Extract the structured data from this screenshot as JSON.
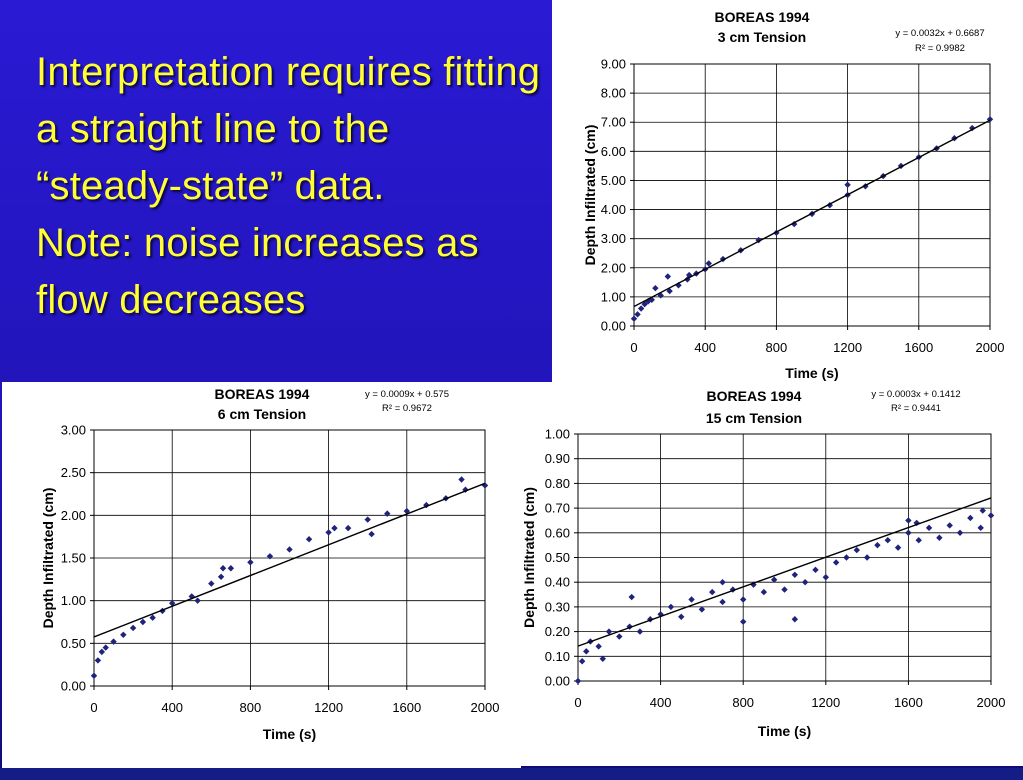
{
  "slide": {
    "lines": [
      "Interpretation requires fitting a straight line to the “steady-state” data.",
      "Note: noise increases as flow decreases"
    ],
    "text_color": "#ffff33",
    "background": "#2a1ad4"
  },
  "chart_data": [
    {
      "type": "scatter",
      "title": "BOREAS  1994",
      "subtitle": "3 cm Tension",
      "xlabel": "Time (s)",
      "ylabel": "Depth Infiltrated (cm)",
      "xlim": [
        0,
        2000
      ],
      "ylim": [
        0,
        9
      ],
      "x_ticks": [
        "0",
        "400",
        "800",
        "1200",
        "1600",
        "2000"
      ],
      "y_ticks": [
        "0.00",
        "1.00",
        "2.00",
        "3.00",
        "4.00",
        "5.00",
        "6.00",
        "7.00",
        "8.00",
        "9.00"
      ],
      "equation": "y = 0.0032x + 0.6687",
      "r2": "R² = 0.9982",
      "trendline": {
        "slope": 0.0032,
        "intercept": 0.6687
      },
      "grid": true,
      "series": [
        {
          "color": "#1f237a",
          "points": [
            [
              0,
              0.25
            ],
            [
              20,
              0.4
            ],
            [
              40,
              0.6
            ],
            [
              60,
              0.75
            ],
            [
              80,
              0.85
            ],
            [
              100,
              0.9
            ],
            [
              150,
              1.05
            ],
            [
              200,
              1.2
            ],
            [
              250,
              1.4
            ],
            [
              300,
              1.6
            ],
            [
              350,
              1.8
            ],
            [
              400,
              1.95
            ],
            [
              500,
              2.3
            ],
            [
              600,
              2.6
            ],
            [
              700,
              2.95
            ],
            [
              800,
              3.2
            ],
            [
              900,
              3.5
            ],
            [
              1000,
              3.85
            ],
            [
              1100,
              4.15
            ],
            [
              1200,
              4.5
            ],
            [
              1300,
              4.8
            ],
            [
              1400,
              5.15
            ],
            [
              1500,
              5.5
            ],
            [
              1600,
              5.8
            ],
            [
              1700,
              6.1
            ],
            [
              1800,
              6.45
            ],
            [
              1900,
              6.8
            ],
            [
              2000,
              7.1
            ]
          ]
        },
        {
          "color": "#1f237a",
          "points": [
            [
              120,
              1.3
            ],
            [
              190,
              1.7
            ],
            [
              310,
              1.75
            ],
            [
              420,
              2.15
            ],
            [
              1200,
              4.85
            ]
          ]
        }
      ]
    },
    {
      "type": "scatter",
      "title": "BOREAS  1994",
      "subtitle": "6 cm Tension",
      "xlabel": "Time (s)",
      "ylabel": "Depth Infiltrated (cm)",
      "xlim": [
        0,
        2000
      ],
      "ylim": [
        0,
        3
      ],
      "x_ticks": [
        "0",
        "400",
        "800",
        "1200",
        "1600",
        "2000"
      ],
      "y_ticks": [
        "0.00",
        "0.50",
        "1.00",
        "1.50",
        "2.00",
        "2.50",
        "3.00"
      ],
      "equation": "y = 0.0009x + 0.575",
      "r2": "R² = 0.9672",
      "trendline": {
        "slope": 0.0009,
        "intercept": 0.575
      },
      "grid": true,
      "series": [
        {
          "color": "#1f237a",
          "points": [
            [
              0,
              0.12
            ],
            [
              20,
              0.3
            ],
            [
              40,
              0.4
            ],
            [
              60,
              0.45
            ],
            [
              100,
              0.52
            ],
            [
              150,
              0.6
            ],
            [
              200,
              0.68
            ],
            [
              250,
              0.75
            ],
            [
              300,
              0.8
            ],
            [
              350,
              0.88
            ],
            [
              400,
              0.97
            ],
            [
              500,
              1.05
            ],
            [
              600,
              1.2
            ],
            [
              650,
              1.28
            ],
            [
              700,
              1.38
            ],
            [
              800,
              1.45
            ],
            [
              900,
              1.52
            ],
            [
              1000,
              1.6
            ],
            [
              1100,
              1.72
            ],
            [
              1200,
              1.8
            ],
            [
              1300,
              1.85
            ],
            [
              1400,
              1.95
            ],
            [
              1500,
              2.02
            ],
            [
              1600,
              2.05
            ],
            [
              1700,
              2.12
            ],
            [
              1800,
              2.2
            ],
            [
              1900,
              2.3
            ],
            [
              2000,
              2.35
            ]
          ]
        },
        {
          "color": "#1f237a",
          "points": [
            [
              530,
              1.0
            ],
            [
              660,
              1.38
            ],
            [
              1230,
              1.85
            ],
            [
              1420,
              1.78
            ],
            [
              1880,
              2.42
            ]
          ]
        }
      ]
    },
    {
      "type": "scatter",
      "title": "BOREAS  1994",
      "subtitle": "15 cm Tension",
      "xlabel": "Time (s)",
      "ylabel": "Depth Infiltrated (cm)",
      "xlim": [
        0,
        2000
      ],
      "ylim": [
        0,
        1
      ],
      "x_ticks": [
        "0",
        "400",
        "800",
        "1200",
        "1600",
        "2000"
      ],
      "y_ticks": [
        "0.00",
        "0.10",
        "0.20",
        "0.30",
        "0.40",
        "0.50",
        "0.60",
        "0.70",
        "0.80",
        "0.90",
        "1.00"
      ],
      "equation": "y = 0.0003x + 0.1412",
      "r2": "R² = 0.9441",
      "trendline": {
        "slope": 0.0003,
        "intercept": 0.1412
      },
      "grid": true,
      "series": [
        {
          "color": "#1f237a",
          "points": [
            [
              0,
              0.0
            ],
            [
              20,
              0.08
            ],
            [
              40,
              0.12
            ],
            [
              60,
              0.16
            ],
            [
              100,
              0.14
            ],
            [
              120,
              0.09
            ],
            [
              150,
              0.2
            ],
            [
              200,
              0.18
            ],
            [
              250,
              0.22
            ],
            [
              300,
              0.2
            ],
            [
              350,
              0.25
            ],
            [
              400,
              0.27
            ],
            [
              450,
              0.3
            ],
            [
              500,
              0.26
            ],
            [
              550,
              0.33
            ],
            [
              600,
              0.29
            ],
            [
              650,
              0.36
            ],
            [
              700,
              0.32
            ],
            [
              750,
              0.37
            ],
            [
              800,
              0.33
            ],
            [
              850,
              0.39
            ],
            [
              900,
              0.36
            ],
            [
              950,
              0.41
            ],
            [
              1000,
              0.37
            ],
            [
              1050,
              0.43
            ],
            [
              1100,
              0.4
            ],
            [
              1150,
              0.45
            ],
            [
              1200,
              0.42
            ],
            [
              1250,
              0.48
            ],
            [
              1300,
              0.5
            ],
            [
              1350,
              0.53
            ],
            [
              1400,
              0.5
            ],
            [
              1450,
              0.55
            ],
            [
              1500,
              0.57
            ],
            [
              1550,
              0.54
            ],
            [
              1600,
              0.6
            ],
            [
              1650,
              0.57
            ],
            [
              1700,
              0.62
            ],
            [
              1750,
              0.58
            ],
            [
              1800,
              0.63
            ],
            [
              1850,
              0.6
            ],
            [
              1900,
              0.66
            ],
            [
              1950,
              0.62
            ],
            [
              2000,
              0.67
            ]
          ]
        },
        {
          "color": "#1f237a",
          "points": [
            [
              260,
              0.34
            ],
            [
              700,
              0.4
            ],
            [
              800,
              0.24
            ],
            [
              1050,
              0.25
            ],
            [
              1600,
              0.65
            ],
            [
              1640,
              0.64
            ],
            [
              1960,
              0.69
            ]
          ]
        }
      ]
    }
  ]
}
